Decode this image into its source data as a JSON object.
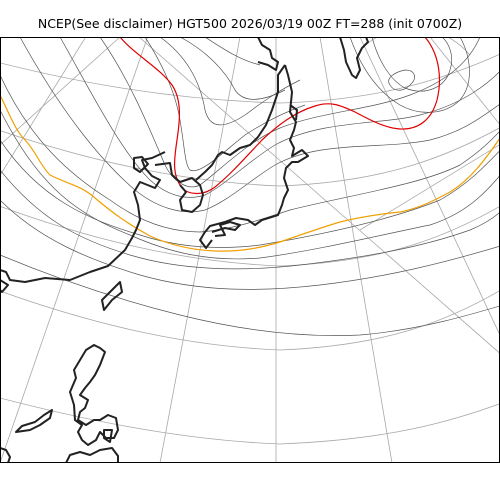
{
  "title": "NCEP(See disclaimer) HGT500 2026/03/19 00Z FT=288 (init 0700Z)",
  "colors": {
    "background": "#ffffff",
    "frame": "#000000",
    "graticule": "#a8a8a8",
    "contour": "#555555",
    "contour_5400": "#f0a000",
    "contour_5700": "#e00000",
    "coastline": "#222222"
  }
}
